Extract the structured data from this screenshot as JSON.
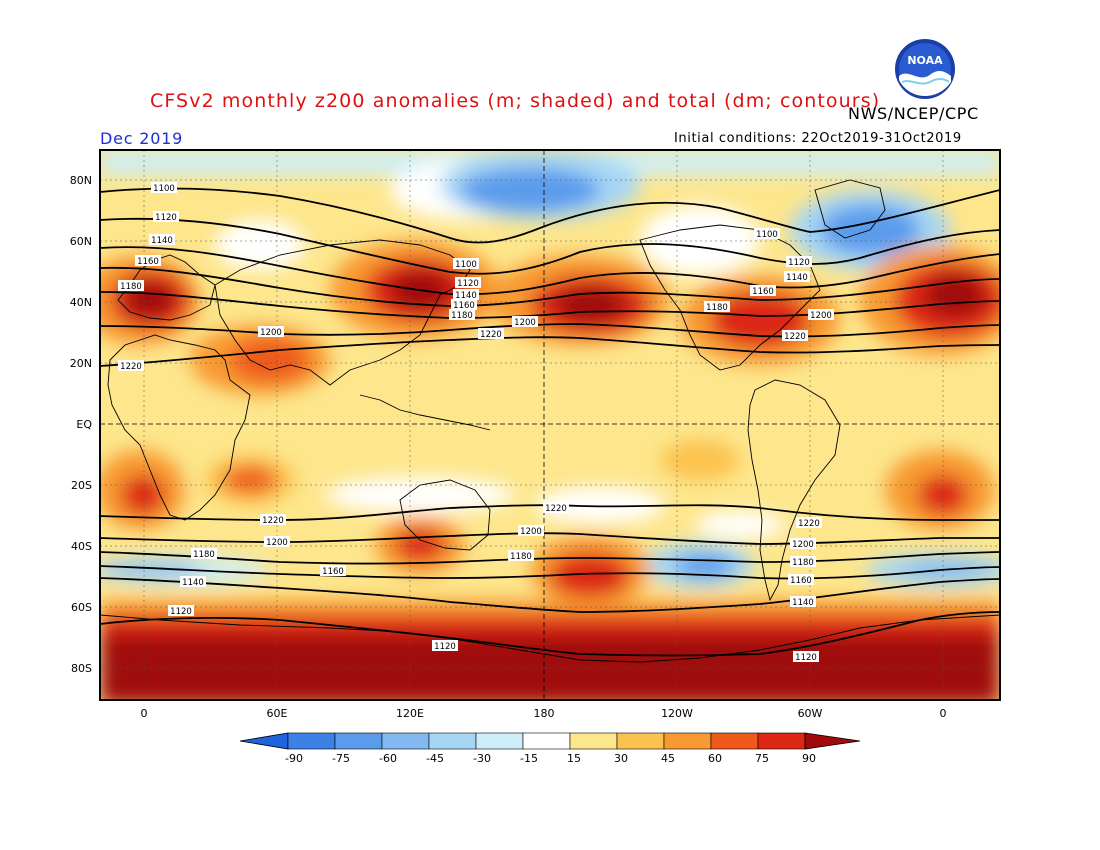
{
  "header": {
    "title": "CFSv2 monthly z200 anomalies (m; shaded) and total (dm; contours)",
    "agency": "NWS/NCEP/CPC",
    "month": "Dec 2019",
    "initial_conditions": "Initial conditions: 22Oct2019-31Oct2019",
    "logo_text": "NOAA"
  },
  "axes": {
    "lat_labels": [
      "80N",
      "60N",
      "40N",
      "20N",
      "EQ",
      "20S",
      "40S",
      "60S",
      "80S"
    ],
    "lon_labels": [
      "0",
      "60E",
      "120E",
      "180",
      "120W",
      "60W",
      "0"
    ]
  },
  "colorbar": {
    "ticks": [
      "-90",
      "-75",
      "-60",
      "-45",
      "-30",
      "-15",
      "15",
      "30",
      "45",
      "60",
      "75",
      "90"
    ],
    "colors": [
      "#1e64dc",
      "#3c82e6",
      "#5a9bec",
      "#82b9f0",
      "#a6d6f4",
      "#cdeef8",
      "#ffffff",
      "#fde68c",
      "#fcc24e",
      "#f89a32",
      "#ef5a1c",
      "#dc2814",
      "#a00a0a"
    ]
  },
  "contours": {
    "units": "dm",
    "labels": [
      "1100",
      "1120",
      "1140",
      "1160",
      "1180",
      "1200",
      "1220"
    ]
  },
  "legend_palette": {
    "neg90": "#1e64dc",
    "pos90": "#a00a0a"
  }
}
